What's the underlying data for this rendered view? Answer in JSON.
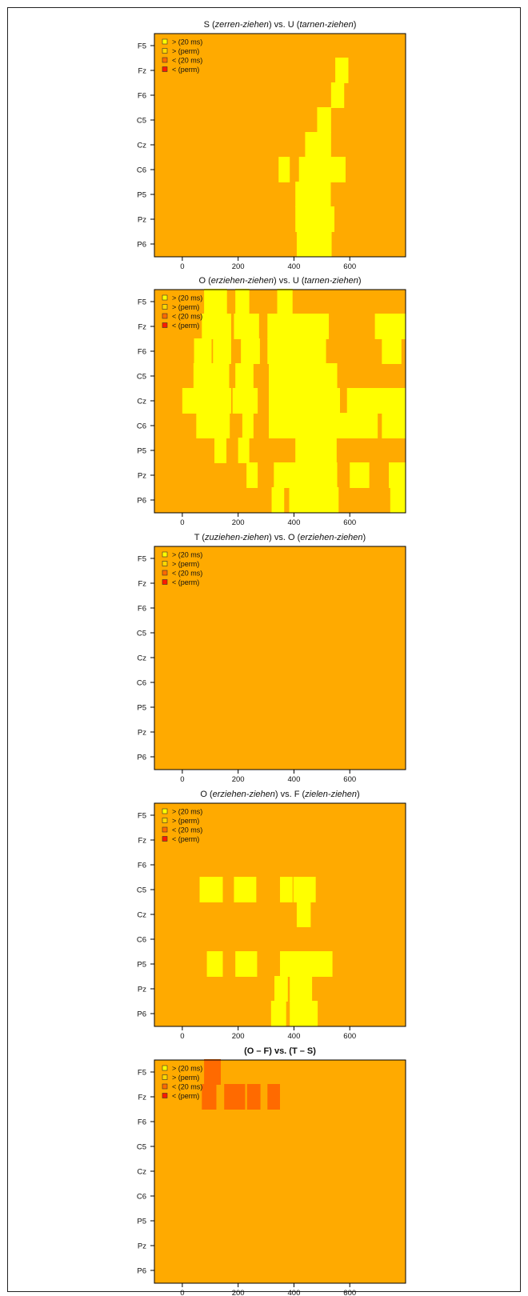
{
  "colors": {
    "background": "#FFAA00",
    "gt_20ms": "#FFFF00",
    "gt_perm": "#FFD700",
    "lt_20ms": "#FF6A00",
    "lt_perm": "#FF1A00",
    "axis": "#000000"
  },
  "chart_data": [
    {
      "type": "heatmap",
      "title": [
        {
          "text": "S (",
          "italic": false
        },
        {
          "text": "zerren-ziehen",
          "italic": true
        },
        {
          "text": ") vs. U (",
          "italic": false
        },
        {
          "text": "tarnen-ziehen",
          "italic": true
        },
        {
          "text": ")",
          "italic": false
        }
      ],
      "electrodes": [
        "F5",
        "Fz",
        "F6",
        "C5",
        "Cz",
        "C6",
        "P5",
        "Pz",
        "P6"
      ],
      "xlim": [
        -100,
        800
      ],
      "xticks": [
        0,
        200,
        400,
        600
      ],
      "legend": [
        "> (20 ms)",
        "> (perm)",
        "< (20 ms)",
        "< (perm)"
      ],
      "cells": [
        {
          "row": "Fz",
          "t0": 548,
          "t1": 595,
          "cat": "gt_20ms"
        },
        {
          "row": "F6",
          "t0": 533,
          "t1": 580,
          "cat": "gt_20ms"
        },
        {
          "row": "C5",
          "t0": 483,
          "t1": 533,
          "cat": "gt_20ms"
        },
        {
          "row": "Cz",
          "t0": 440,
          "t1": 533,
          "cat": "gt_20ms"
        },
        {
          "row": "C6",
          "t0": 345,
          "t1": 385,
          "cat": "gt_20ms"
        },
        {
          "row": "C6",
          "t0": 418,
          "t1": 585,
          "cat": "gt_20ms"
        },
        {
          "row": "P5",
          "t0": 405,
          "t1": 532,
          "cat": "gt_20ms"
        },
        {
          "row": "Pz",
          "t0": 405,
          "t1": 545,
          "cat": "gt_20ms"
        },
        {
          "row": "P6",
          "t0": 410,
          "t1": 535,
          "cat": "gt_20ms"
        }
      ]
    },
    {
      "type": "heatmap",
      "title": [
        {
          "text": "O (",
          "italic": false
        },
        {
          "text": "erziehen-ziehen",
          "italic": true
        },
        {
          "text": ") vs. U (",
          "italic": false
        },
        {
          "text": "tarnen-ziehen",
          "italic": true
        },
        {
          "text": ")",
          "italic": false
        }
      ],
      "electrodes": [
        "F5",
        "Fz",
        "F6",
        "C5",
        "Cz",
        "C6",
        "P5",
        "Pz",
        "P6"
      ],
      "xlim": [
        -100,
        800
      ],
      "xticks": [
        0,
        200,
        400,
        600
      ],
      "legend": [
        "> (20 ms)",
        "> (perm)",
        "< (20 ms)",
        "< (perm)"
      ],
      "cells": [
        {
          "row": "F5",
          "t0": 78,
          "t1": 160,
          "cat": "gt_20ms"
        },
        {
          "row": "F5",
          "t0": 190,
          "t1": 240,
          "cat": "gt_20ms"
        },
        {
          "row": "F5",
          "t0": 340,
          "t1": 395,
          "cat": "gt_20ms"
        },
        {
          "row": "Fz",
          "t0": 70,
          "t1": 175,
          "cat": "gt_20ms"
        },
        {
          "row": "Fz",
          "t0": 185,
          "t1": 275,
          "cat": "gt_20ms"
        },
        {
          "row": "Fz",
          "t0": 305,
          "t1": 525,
          "cat": "gt_20ms"
        },
        {
          "row": "Fz",
          "t0": 690,
          "t1": 800,
          "cat": "gt_20ms"
        },
        {
          "row": "F6",
          "t0": 42,
          "t1": 105,
          "cat": "gt_20ms"
        },
        {
          "row": "F6",
          "t0": 110,
          "t1": 175,
          "cat": "gt_20ms"
        },
        {
          "row": "F6",
          "t0": 210,
          "t1": 278,
          "cat": "gt_20ms"
        },
        {
          "row": "F6",
          "t0": 305,
          "t1": 515,
          "cat": "gt_20ms"
        },
        {
          "row": "F6",
          "t0": 715,
          "t1": 785,
          "cat": "gt_20ms"
        },
        {
          "row": "C5",
          "t0": 40,
          "t1": 168,
          "cat": "gt_20ms"
        },
        {
          "row": "C5",
          "t0": 190,
          "t1": 255,
          "cat": "gt_20ms"
        },
        {
          "row": "C5",
          "t0": 310,
          "t1": 555,
          "cat": "gt_20ms"
        },
        {
          "row": "Cz",
          "t0": 0,
          "t1": 175,
          "cat": "gt_20ms"
        },
        {
          "row": "Cz",
          "t0": 180,
          "t1": 270,
          "cat": "gt_20ms"
        },
        {
          "row": "Cz",
          "t0": 310,
          "t1": 565,
          "cat": "gt_20ms"
        },
        {
          "row": "Cz",
          "t0": 590,
          "t1": 800,
          "cat": "gt_20ms"
        },
        {
          "row": "C6",
          "t0": 50,
          "t1": 170,
          "cat": "gt_20ms"
        },
        {
          "row": "C6",
          "t0": 215,
          "t1": 255,
          "cat": "gt_20ms"
        },
        {
          "row": "C6",
          "t0": 310,
          "t1": 700,
          "cat": "gt_20ms"
        },
        {
          "row": "C6",
          "t0": 715,
          "t1": 800,
          "cat": "gt_20ms"
        },
        {
          "row": "P5",
          "t0": 115,
          "t1": 158,
          "cat": "gt_20ms"
        },
        {
          "row": "P5",
          "t0": 200,
          "t1": 240,
          "cat": "gt_20ms"
        },
        {
          "row": "P5",
          "t0": 405,
          "t1": 553,
          "cat": "gt_20ms"
        },
        {
          "row": "Pz",
          "t0": 230,
          "t1": 270,
          "cat": "gt_20ms"
        },
        {
          "row": "Pz",
          "t0": 328,
          "t1": 555,
          "cat": "gt_20ms"
        },
        {
          "row": "Pz",
          "t0": 600,
          "t1": 670,
          "cat": "gt_20ms"
        },
        {
          "row": "Pz",
          "t0": 740,
          "t1": 800,
          "cat": "gt_20ms"
        },
        {
          "row": "P6",
          "t0": 320,
          "t1": 365,
          "cat": "gt_20ms"
        },
        {
          "row": "P6",
          "t0": 383,
          "t1": 560,
          "cat": "gt_20ms"
        },
        {
          "row": "P6",
          "t0": 745,
          "t1": 800,
          "cat": "gt_20ms"
        }
      ]
    },
    {
      "type": "heatmap",
      "title": [
        {
          "text": "T (",
          "italic": false
        },
        {
          "text": "zuziehen-ziehen",
          "italic": true
        },
        {
          "text": ") vs. O (",
          "italic": false
        },
        {
          "text": "erziehen-ziehen",
          "italic": true
        },
        {
          "text": ")",
          "italic": false
        }
      ],
      "electrodes": [
        "F5",
        "Fz",
        "F6",
        "C5",
        "Cz",
        "C6",
        "P5",
        "Pz",
        "P6"
      ],
      "xlim": [
        -100,
        800
      ],
      "xticks": [
        0,
        200,
        400,
        600
      ],
      "legend": [
        "> (20 ms)",
        "> (perm)",
        "< (20 ms)",
        "< (perm)"
      ],
      "cells": []
    },
    {
      "type": "heatmap",
      "title": [
        {
          "text": "O (",
          "italic": false
        },
        {
          "text": "erziehen-ziehen",
          "italic": true
        },
        {
          "text": ") vs. F (",
          "italic": false
        },
        {
          "text": "zielen-ziehen",
          "italic": true
        },
        {
          "text": ")",
          "italic": false
        }
      ],
      "electrodes": [
        "F5",
        "Fz",
        "F6",
        "C5",
        "Cz",
        "C6",
        "P5",
        "Pz",
        "P6"
      ],
      "xlim": [
        -100,
        800
      ],
      "xticks": [
        0,
        200,
        400,
        600
      ],
      "legend": [
        "> (20 ms)",
        "> (perm)",
        "< (20 ms)",
        "< (perm)"
      ],
      "cells": [
        {
          "row": "C5",
          "t0": 62,
          "t1": 145,
          "cat": "gt_20ms"
        },
        {
          "row": "C5",
          "t0": 185,
          "t1": 265,
          "cat": "gt_20ms"
        },
        {
          "row": "C5",
          "t0": 350,
          "t1": 395,
          "cat": "gt_20ms"
        },
        {
          "row": "C5",
          "t0": 398,
          "t1": 478,
          "cat": "gt_20ms"
        },
        {
          "row": "Cz",
          "t0": 410,
          "t1": 460,
          "cat": "gt_20ms"
        },
        {
          "row": "P5",
          "t0": 88,
          "t1": 145,
          "cat": "gt_20ms"
        },
        {
          "row": "P5",
          "t0": 190,
          "t1": 268,
          "cat": "gt_20ms"
        },
        {
          "row": "P5",
          "t0": 350,
          "t1": 538,
          "cat": "gt_20ms"
        },
        {
          "row": "Pz",
          "t0": 330,
          "t1": 378,
          "cat": "gt_20ms"
        },
        {
          "row": "Pz",
          "t0": 385,
          "t1": 465,
          "cat": "gt_20ms"
        },
        {
          "row": "P6",
          "t0": 318,
          "t1": 372,
          "cat": "gt_20ms"
        },
        {
          "row": "P6",
          "t0": 385,
          "t1": 485,
          "cat": "gt_20ms"
        }
      ]
    },
    {
      "type": "heatmap",
      "title": [
        {
          "text": "(O – F) vs. (T – S)",
          "italic": false
        }
      ],
      "title_bold": true,
      "electrodes": [
        "F5",
        "Fz",
        "F6",
        "C5",
        "Cz",
        "C6",
        "P5",
        "Pz",
        "P6"
      ],
      "xlim": [
        -100,
        800
      ],
      "xticks": [
        0,
        200,
        400,
        600
      ],
      "legend": [
        "> (20 ms)",
        "> (perm)",
        "< (20 ms)",
        "< (perm)"
      ],
      "cells": [
        {
          "row": "F5",
          "t0": 78,
          "t1": 138,
          "cat": "lt_20ms"
        },
        {
          "row": "Fz",
          "t0": 70,
          "t1": 122,
          "cat": "lt_20ms"
        },
        {
          "row": "Fz",
          "t0": 150,
          "t1": 225,
          "cat": "lt_20ms"
        },
        {
          "row": "Fz",
          "t0": 232,
          "t1": 280,
          "cat": "lt_20ms"
        },
        {
          "row": "Fz",
          "t0": 305,
          "t1": 350,
          "cat": "lt_20ms"
        }
      ]
    }
  ]
}
